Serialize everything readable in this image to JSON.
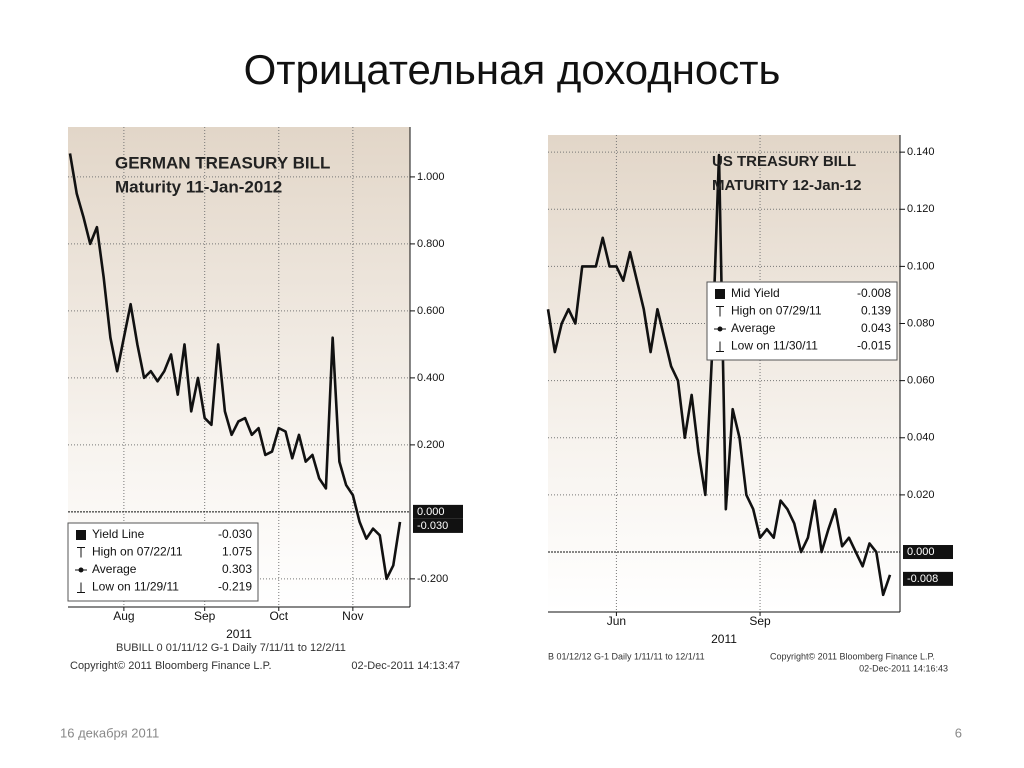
{
  "slide": {
    "title": "Отрицательная доходность",
    "date": "16  декабря 2011",
    "page": "6"
  },
  "chart_data": [
    {
      "type": "line",
      "title_lines": [
        "GERMAN TREASURY BILL",
        "Maturity   11-Jan-2012"
      ],
      "categories": [
        null,
        null,
        null,
        null,
        null,
        null,
        null,
        null,
        "Aug",
        null,
        null,
        null,
        null,
        null,
        null,
        null,
        null,
        null,
        null,
        null,
        "Sep",
        null,
        null,
        null,
        null,
        null,
        null,
        null,
        null,
        null,
        null,
        "Oct",
        null,
        null,
        null,
        null,
        null,
        null,
        null,
        null,
        null,
        null,
        "Nov",
        null,
        null,
        null,
        null,
        null,
        null,
        null
      ],
      "series": [
        {
          "name": "Yield Line",
          "color": "#111111",
          "values": [
            1.07,
            0.95,
            0.88,
            0.8,
            0.85,
            0.7,
            0.52,
            0.42,
            0.52,
            0.62,
            0.5,
            0.4,
            0.42,
            0.39,
            0.42,
            0.47,
            0.35,
            0.5,
            0.3,
            0.4,
            0.28,
            0.26,
            0.5,
            0.3,
            0.23,
            0.27,
            0.28,
            0.23,
            0.25,
            0.17,
            0.18,
            0.25,
            0.24,
            0.16,
            0.23,
            0.15,
            0.17,
            0.1,
            0.07,
            0.52,
            0.15,
            0.08,
            0.05,
            -0.03,
            -0.08,
            -0.05,
            -0.07,
            -0.2,
            -0.16,
            -0.03
          ]
        }
      ],
      "ylim": [
        -0.284,
        1.149
      ],
      "yticks": [
        {
          "value": 1,
          "label": "1.000"
        },
        {
          "value": 0.8,
          "label": "0.800"
        },
        {
          "value": 0.6,
          "label": "0.600"
        },
        {
          "value": 0.4,
          "label": "0.400"
        },
        {
          "value": 0.2,
          "label": "0.200"
        },
        {
          "value": -0.2,
          "label": "-0.200"
        }
      ],
      "value_tags": [
        {
          "value": 0,
          "label": "0.000"
        },
        {
          "value": -0.03,
          "label": "-0.030"
        }
      ],
      "stats": [
        {
          "label": "High on 07/22/11",
          "value": "1.075"
        },
        {
          "label": "Average",
          "value": "0.303"
        },
        {
          "label": "Low on 11/29/11",
          "value": "-0.219"
        }
      ],
      "xlabel": "2011",
      "grid": true,
      "footer": [
        "BUBILL 0 01/11/12    G-1   Daily   7/11/11 to 12/2/11",
        "Copyright© 2011 Bloomberg Finance L.P.",
        "02-Dec-2011 14:13:47"
      ]
    },
    {
      "type": "line",
      "title_lines": [
        "US TREASURY BILL",
        "MATURITY 12-Jan-12"
      ],
      "categories": [
        null,
        null,
        null,
        null,
        null,
        null,
        null,
        null,
        null,
        null,
        "Jun",
        null,
        null,
        null,
        null,
        null,
        null,
        null,
        null,
        null,
        null,
        null,
        null,
        null,
        null,
        null,
        null,
        null,
        null,
        null,
        null,
        "Sep",
        null,
        null,
        null,
        null,
        null,
        null,
        null,
        null,
        null,
        null,
        null,
        null,
        null,
        null,
        null,
        null,
        null,
        null,
        null
      ],
      "series": [
        {
          "name": "Mid Yield",
          "color": "#111111",
          "values": [
            0.085,
            0.07,
            0.08,
            0.085,
            0.08,
            0.1,
            0.1,
            0.1,
            0.11,
            0.1,
            0.1,
            0.095,
            0.105,
            0.095,
            0.085,
            0.07,
            0.085,
            0.075,
            0.065,
            0.06,
            0.04,
            0.055,
            0.035,
            0.02,
            0.07,
            0.139,
            0.015,
            0.05,
            0.04,
            0.02,
            0.015,
            0.005,
            0.008,
            0.005,
            0.018,
            0.015,
            0.01,
            0,
            0.005,
            0.018,
            0,
            0.008,
            0.015,
            0.002,
            0.005,
            0,
            -0.005,
            0.003,
            0,
            -0.015,
            -0.008
          ]
        }
      ],
      "ylim": [
        -0.021,
        0.146
      ],
      "yticks": [
        {
          "value": 0.14,
          "label": "0.140"
        },
        {
          "value": 0.12,
          "label": "0.120"
        },
        {
          "value": 0.1,
          "label": "0.100"
        },
        {
          "value": 0.08,
          "label": "0.080"
        },
        {
          "value": 0.06,
          "label": "0.060"
        },
        {
          "value": 0.04,
          "label": "0.040"
        },
        {
          "value": 0.02,
          "label": "0.020"
        }
      ],
      "value_tags": [
        {
          "value": 0,
          "label": "0.000"
        },
        {
          "value": -0.008,
          "label": "-0.008"
        }
      ],
      "stats": [
        {
          "label": "High on 07/29/11",
          "value": "0.139"
        },
        {
          "label": "Average",
          "value": "0.043"
        },
        {
          "label": "Low on 11/30/11",
          "value": "-0.015"
        }
      ],
      "xlabel": "2011",
      "grid": true,
      "footer": [
        "B 01/12/12    G-1   Daily   1/11/11 to 12/1/11",
        "Copyright© 2011 Bloomberg Finance L.P.",
        "02-Dec-2011 14:16:43"
      ]
    }
  ]
}
